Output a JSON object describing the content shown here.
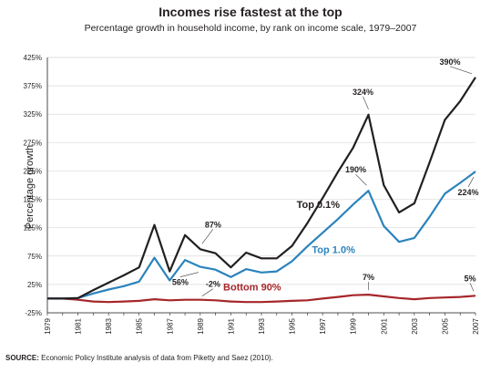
{
  "chart_data": {
    "type": "line",
    "title": "Incomes rise fastest at the top",
    "subtitle": "Percentage growth in household income, by rank on income scale, 1979–2007",
    "xlabel": "",
    "ylabel": "Percentage growth",
    "source_prefix": "SOURCE:",
    "source_text": " Economic Policy Institute analysis of data from Piketty and Saez (2010).",
    "x": [
      1979,
      1980,
      1981,
      1982,
      1983,
      1984,
      1985,
      1986,
      1987,
      1988,
      1989,
      1990,
      1991,
      1992,
      1993,
      1994,
      1995,
      1996,
      1997,
      1998,
      1999,
      2000,
      2001,
      2002,
      2003,
      2004,
      2005,
      2006,
      2007
    ],
    "x_ticks": [
      "1979",
      "1981",
      "1983",
      "1985",
      "1987",
      "1989",
      "1991",
      "1993",
      "1995",
      "1997",
      "1999",
      "2001",
      "2003",
      "2005",
      "2007"
    ],
    "x_tick_values": [
      1979,
      1981,
      1983,
      1985,
      1987,
      1989,
      1991,
      1993,
      1995,
      1997,
      1999,
      2001,
      2003,
      2005,
      2007
    ],
    "y_ticks": [
      "-25%",
      "25%",
      "75%",
      "125%",
      "175%",
      "225%",
      "275%",
      "325%",
      "375%",
      "425%"
    ],
    "y_tick_values": [
      -25,
      25,
      75,
      125,
      175,
      225,
      275,
      325,
      375,
      425
    ],
    "xlim": [
      1979,
      2007
    ],
    "ylim": [
      -25,
      425
    ],
    "grid": true,
    "series": [
      {
        "name": "Top 0.1%",
        "color": "#231f20",
        "values": [
          0,
          0,
          1,
          15,
          28,
          41,
          55,
          130,
          48,
          112,
          87,
          80,
          55,
          81,
          71,
          71,
          93,
          133,
          177,
          223,
          266,
          324,
          200,
          152,
          168,
          240,
          315,
          348,
          390
        ]
      },
      {
        "name": "Top 1.0%",
        "color": "#2b83bc",
        "values": [
          0,
          0,
          1,
          9,
          16,
          22,
          30,
          72,
          32,
          68,
          56,
          51,
          38,
          52,
          46,
          48,
          66,
          92,
          116,
          140,
          166,
          190,
          128,
          100,
          107,
          144,
          185,
          204,
          224
        ]
      },
      {
        "name": "Bottom 90%",
        "color": "#a6262a",
        "values": [
          0,
          0,
          -2,
          -5,
          -6,
          -5,
          -4,
          -1,
          -3,
          -2,
          -2,
          -3,
          -5,
          -6,
          -6,
          -5,
          -4,
          -3,
          0,
          3,
          6,
          7,
          4,
          1,
          -1,
          1,
          2,
          3,
          5
        ]
      }
    ],
    "annotations": [
      {
        "text": "390%",
        "x": 2007,
        "y": 390
      },
      {
        "text": "324%",
        "x": 2000,
        "y": 324
      },
      {
        "text": "190%",
        "x": 2000,
        "y": 190
      },
      {
        "text": "224%",
        "x": 2007,
        "y": 224
      },
      {
        "text": "87%",
        "x": 1989,
        "y": 87
      },
      {
        "text": "56%",
        "x": 1989,
        "y": 56
      },
      {
        "text": "-2%",
        "x": 1989,
        "y": -2
      },
      {
        "text": "7%",
        "x": 2000,
        "y": 7
      },
      {
        "text": "5%",
        "x": 2007,
        "y": 5
      }
    ]
  }
}
